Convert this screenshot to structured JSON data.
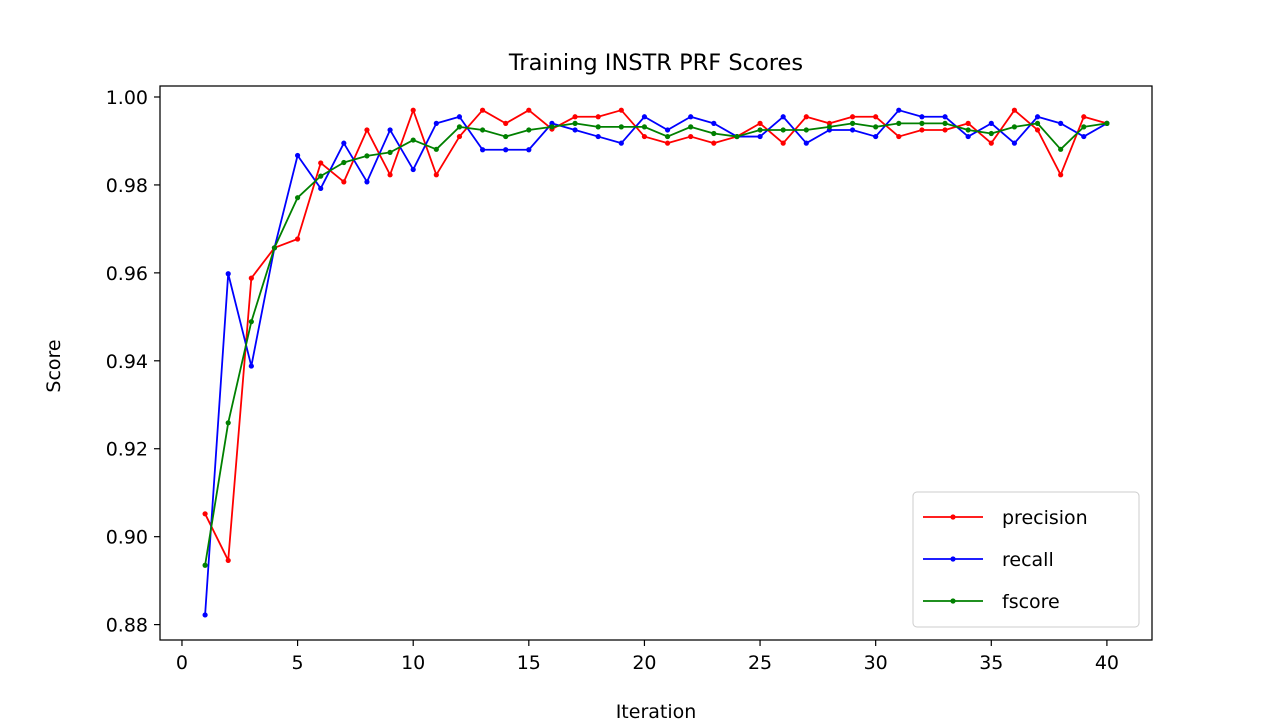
{
  "chart_data": {
    "type": "line",
    "title": "Training INSTR PRF Scores",
    "xlabel": "Iteration",
    "ylabel": "Score",
    "xlim": [
      -0.95,
      41.95
    ],
    "ylim": [
      0.8765,
      1.0025
    ],
    "xticks": [
      0,
      5,
      10,
      15,
      20,
      25,
      30,
      35,
      40
    ],
    "xtick_labels": [
      "0",
      "5",
      "10",
      "15",
      "20",
      "25",
      "30",
      "35",
      "40"
    ],
    "yticks": [
      0.88,
      0.9,
      0.92,
      0.94,
      0.96,
      0.98,
      1.0
    ],
    "ytick_labels": [
      "0.88",
      "0.90",
      "0.92",
      "0.94",
      "0.96",
      "0.98",
      "1.00"
    ],
    "grid": false,
    "legend_position": "lower right",
    "x": [
      1,
      2,
      3,
      4,
      5,
      6,
      7,
      8,
      9,
      10,
      11,
      12,
      13,
      14,
      15,
      16,
      17,
      18,
      19,
      20,
      21,
      22,
      23,
      24,
      25,
      26,
      27,
      28,
      29,
      30,
      31,
      32,
      33,
      34,
      35,
      36,
      37,
      38,
      39,
      40
    ],
    "series": [
      {
        "name": "precision",
        "color": "#ff0000",
        "values": [
          0.9052,
          0.8946,
          0.9588,
          0.9657,
          0.9677,
          0.985,
          0.9807,
          0.9925,
          0.9823,
          0.997,
          0.9823,
          0.991,
          0.997,
          0.994,
          0.997,
          0.9927,
          0.9955,
          0.9955,
          0.997,
          0.991,
          0.9895,
          0.991,
          0.9895,
          0.991,
          0.994,
          0.9895,
          0.9955,
          0.994,
          0.9955,
          0.9955,
          0.991,
          0.9925,
          0.9925,
          0.994,
          0.9895,
          0.997,
          0.9925,
          0.9823,
          0.9955,
          0.994
        ]
      },
      {
        "name": "recall",
        "color": "#0000ff",
        "values": [
          0.8822,
          0.9598,
          0.9388,
          0.9657,
          0.9867,
          0.9792,
          0.9895,
          0.9807,
          0.9925,
          0.9835,
          0.994,
          0.9955,
          0.988,
          0.988,
          0.988,
          0.994,
          0.9925,
          0.991,
          0.9895,
          0.9955,
          0.9925,
          0.9955,
          0.994,
          0.991,
          0.991,
          0.9955,
          0.9895,
          0.9925,
          0.9925,
          0.991,
          0.997,
          0.9955,
          0.9955,
          0.991,
          0.994,
          0.9895,
          0.9955,
          0.994,
          0.991,
          0.994
        ]
      },
      {
        "name": "fscore",
        "color": "#008000",
        "values": [
          0.8935,
          0.9259,
          0.9489,
          0.9657,
          0.9771,
          0.982,
          0.9851,
          0.9866,
          0.9874,
          0.9902,
          0.9881,
          0.9932,
          0.9925,
          0.991,
          0.9925,
          0.9932,
          0.994,
          0.9932,
          0.9932,
          0.9932,
          0.991,
          0.9932,
          0.9917,
          0.991,
          0.9925,
          0.9925,
          0.9925,
          0.9932,
          0.994,
          0.9932,
          0.994,
          0.994,
          0.994,
          0.9925,
          0.9917,
          0.9932,
          0.994,
          0.9881,
          0.9932,
          0.994
        ]
      }
    ]
  }
}
